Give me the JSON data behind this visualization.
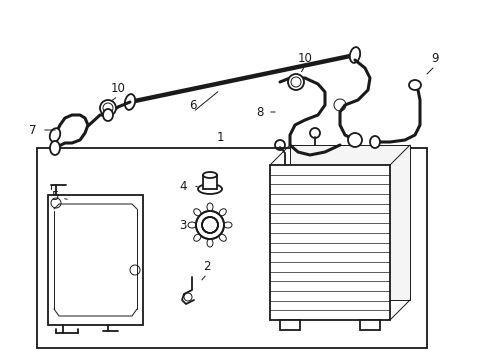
{
  "background_color": "#ffffff",
  "line_color": "#1a1a1a",
  "fig_width": 4.89,
  "fig_height": 3.6,
  "dpi": 100,
  "label_fontsize": 8.5,
  "thin_lw": 0.7,
  "hose_lw": 2.2,
  "part_lw": 1.3
}
